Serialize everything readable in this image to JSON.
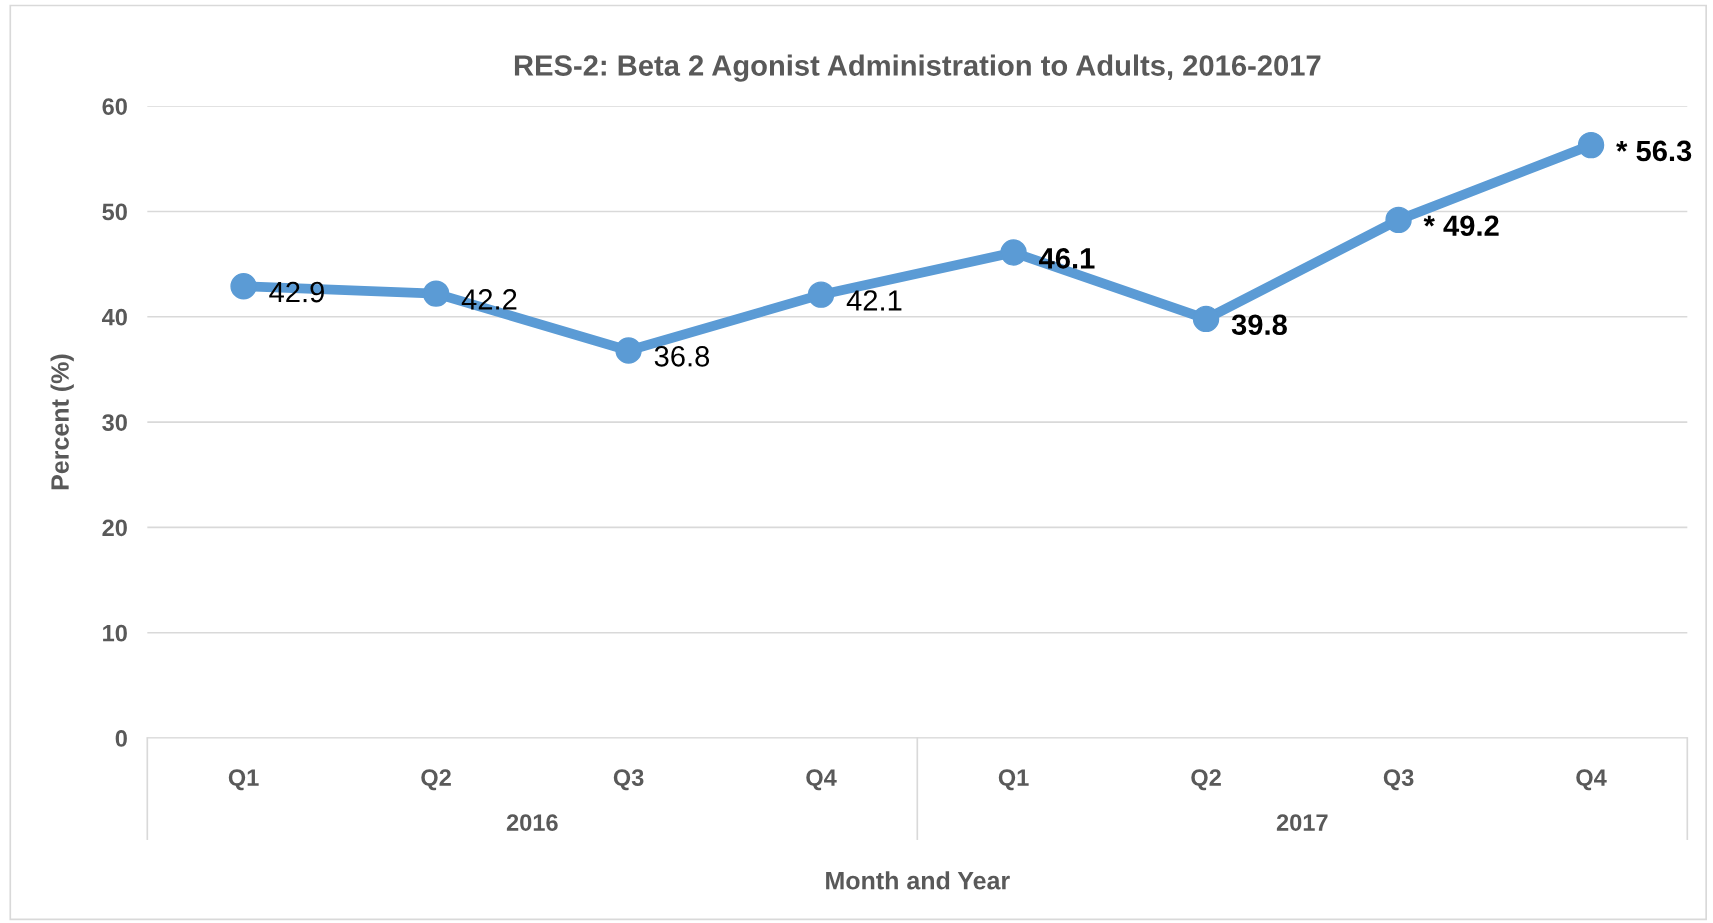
{
  "chart_data": {
    "type": "line",
    "title": "RES-2: Beta 2 Agonist Administration to Adults, 2016-2017",
    "xlabel": "Month and Year",
    "ylabel": "Percent (%)",
    "categories": [
      "Q1",
      "Q2",
      "Q3",
      "Q4",
      "Q1",
      "Q2",
      "Q3",
      "Q4"
    ],
    "annotations": [
      "2016",
      "2017"
    ],
    "series": [
      {
        "color": "#5b9bd5",
        "values": [
          42.9,
          42.2,
          36.8,
          42.1,
          46.1,
          39.8,
          49.2,
          56.3
        ],
        "value_labels": [
          "42.9",
          "42.2",
          "36.8",
          "42.1",
          "46.1",
          "39.8",
          "* 49.2",
          "* 56.3"
        ]
      }
    ],
    "ylim": [
      0,
      60
    ],
    "yticks": [
      0,
      10,
      20,
      30,
      40,
      50,
      60
    ],
    "grid": "y",
    "marker": "circle",
    "line_style": "solid"
  }
}
